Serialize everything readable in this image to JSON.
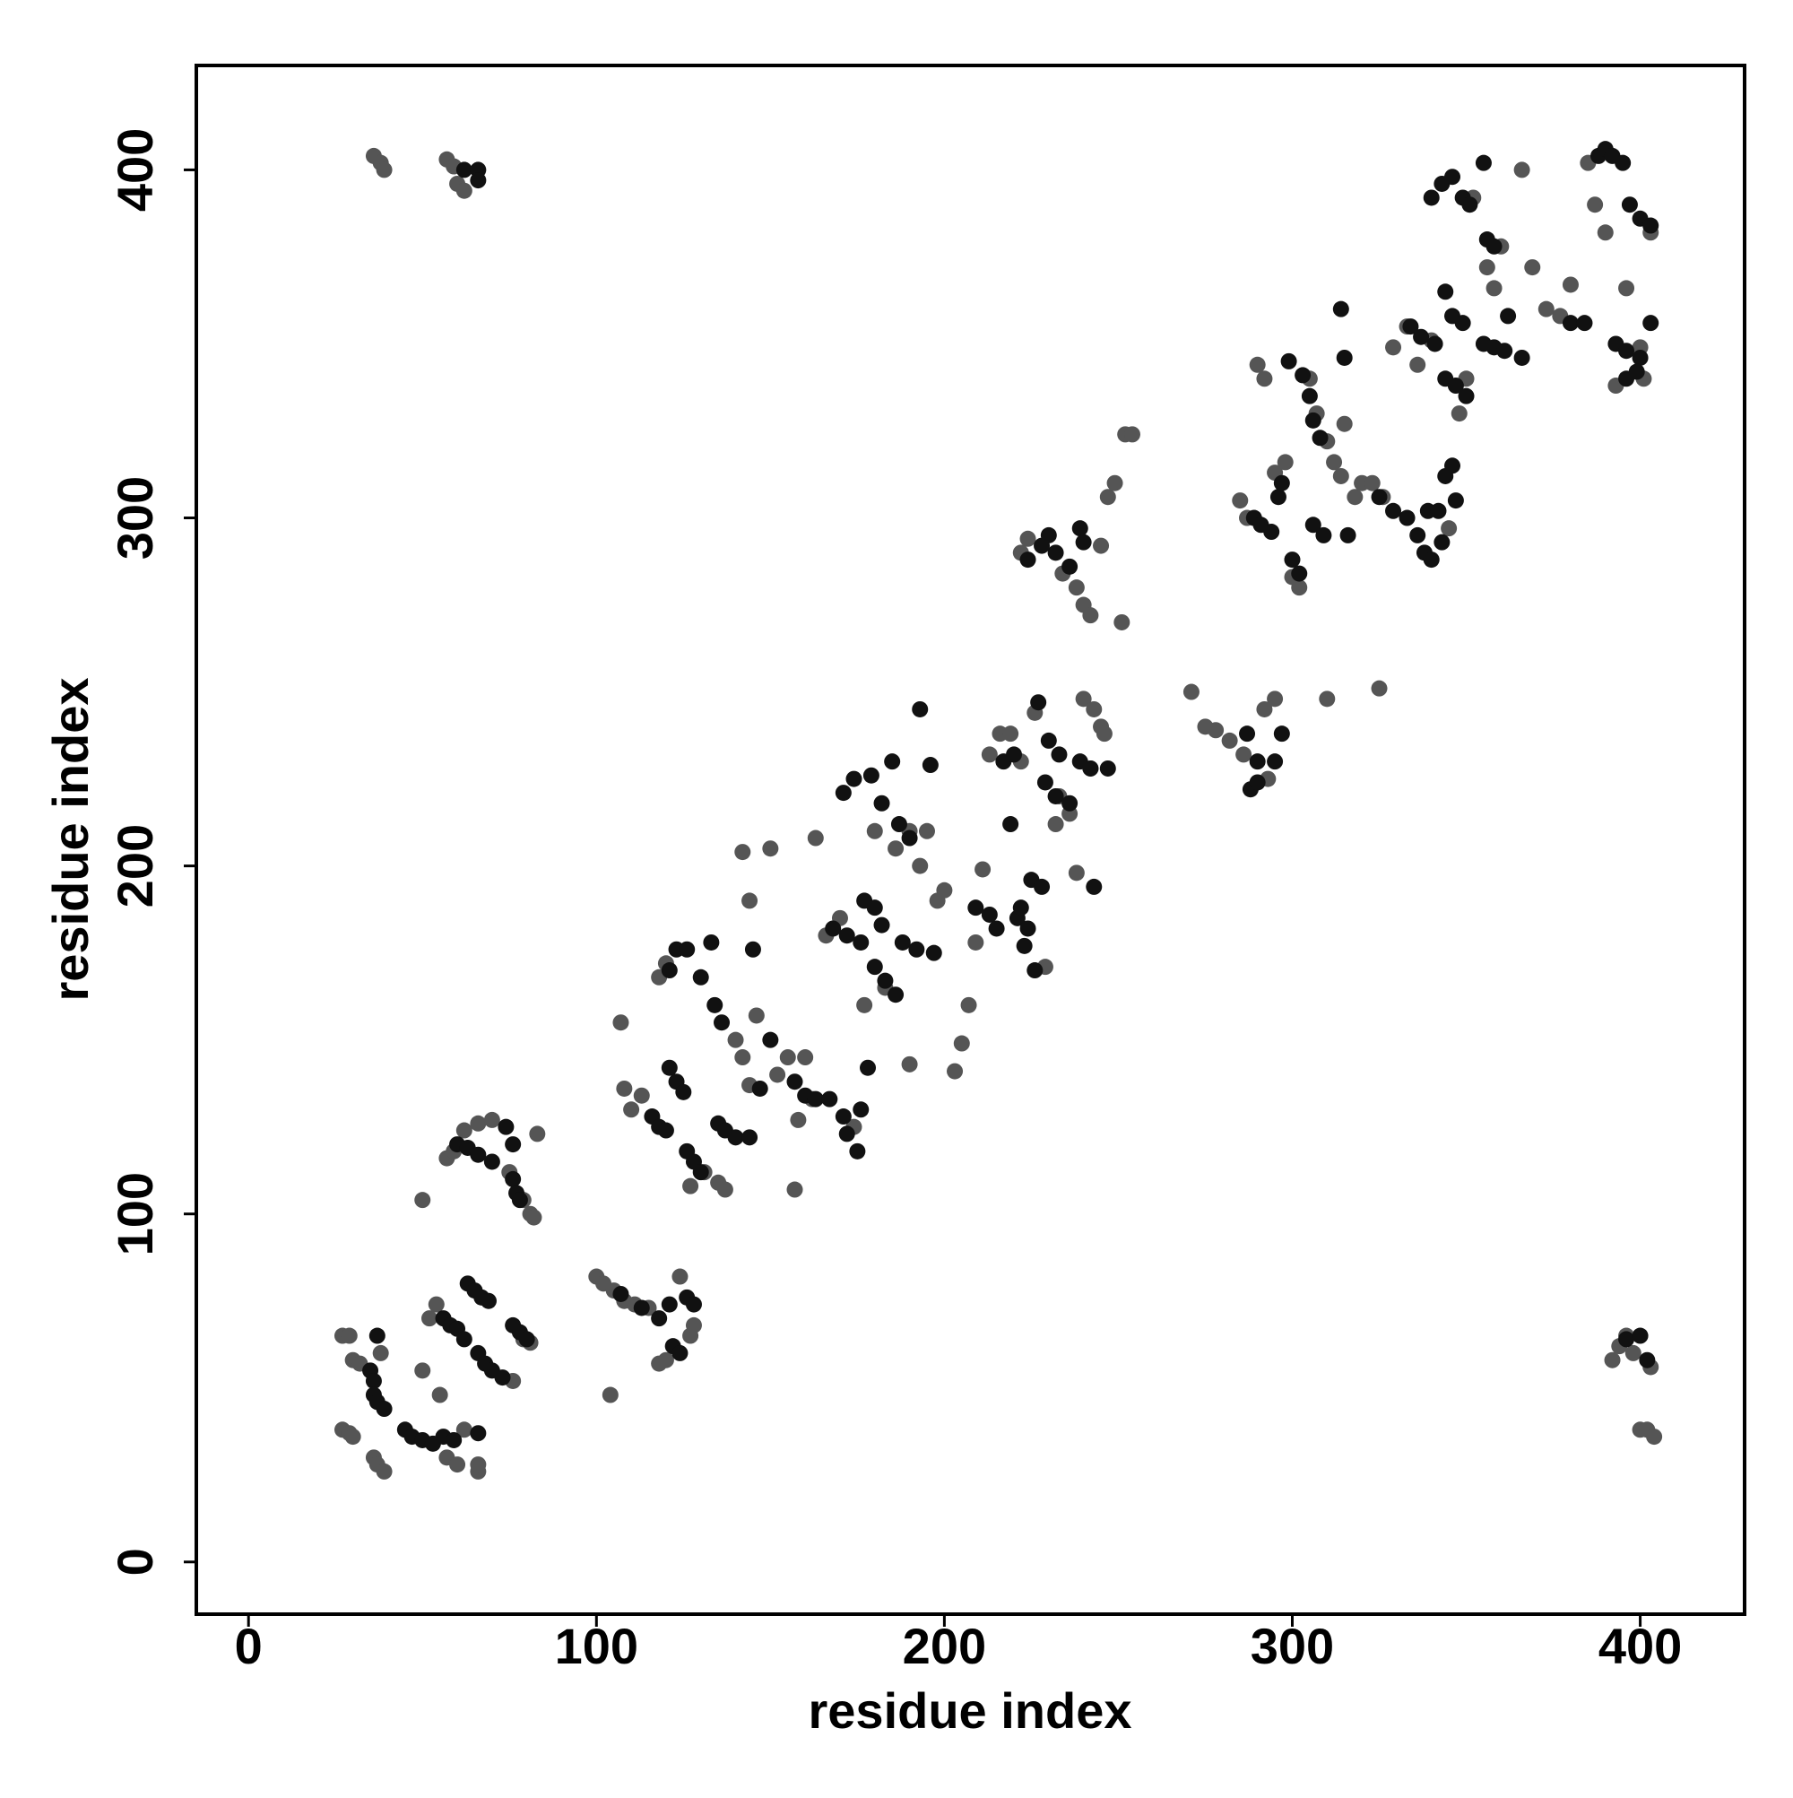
{
  "chart_data": {
    "type": "scatter",
    "xlabel": "residue index",
    "ylabel": "residue index",
    "xlim": [
      -15,
      430
    ],
    "ylim": [
      -15,
      430
    ],
    "xticks": [
      0,
      100,
      200,
      300,
      400
    ],
    "yticks": [
      0,
      100,
      200,
      300,
      400
    ],
    "series": [
      {
        "color": "#555555",
        "x": [
          36,
          38,
          39,
          57,
          59,
          60,
          62,
          27,
          29,
          30,
          32,
          27,
          29,
          30,
          36,
          37,
          39,
          38,
          54,
          55,
          57,
          60,
          66,
          66,
          50,
          52,
          62,
          76,
          79,
          81,
          100,
          102,
          105,
          108,
          111,
          115,
          118,
          120,
          124,
          127,
          128,
          104,
          50,
          57,
          59,
          62,
          66,
          70,
          75,
          79,
          81,
          82,
          83,
          107,
          108,
          110,
          113,
          118,
          120,
          127,
          131,
          135,
          137,
          140,
          142,
          144,
          146,
          142,
          144,
          150,
          152,
          155,
          157,
          158,
          160,
          162,
          163,
          166,
          170,
          174,
          177,
          180,
          183,
          186,
          190,
          193,
          195,
          198,
          200,
          203,
          205,
          207,
          209,
          211,
          213,
          216,
          219,
          222,
          229,
          232,
          236,
          238,
          240,
          243,
          245,
          246,
          242,
          226,
          233,
          190,
          222,
          224,
          234,
          238,
          240,
          242,
          245,
          247,
          249,
          251,
          252,
          254,
          271,
          275,
          278,
          282,
          286,
          292,
          295,
          293,
          310,
          325,
          285,
          287,
          290,
          292,
          295,
          298,
          300,
          302,
          305,
          307,
          310,
          312,
          314,
          315,
          318,
          320,
          323,
          326,
          329,
          333,
          336,
          340,
          345,
          348,
          350,
          352,
          356,
          358,
          360,
          366,
          369,
          373,
          377,
          380,
          385,
          387,
          390,
          393,
          396,
          400,
          401,
          403,
          392,
          394,
          396,
          398,
          400,
          402,
          404,
          403
        ],
        "values": [
          404,
          402,
          400,
          403,
          401,
          396,
          394,
          65,
          65,
          58,
          57,
          38,
          37,
          36,
          30,
          28,
          26,
          60,
          74,
          48,
          30,
          28,
          26,
          28,
          55,
          70,
          38,
          52,
          64,
          63,
          82,
          80,
          78,
          75,
          74,
          73,
          57,
          58,
          82,
          65,
          68,
          48,
          104,
          116,
          118,
          124,
          126,
          127,
          112,
          104,
          100,
          99,
          123,
          155,
          136,
          130,
          134,
          168,
          172,
          108,
          112,
          109,
          107,
          150,
          145,
          137,
          157,
          204,
          190,
          205,
          140,
          145,
          107,
          127,
          145,
          133,
          208,
          180,
          185,
          125,
          160,
          210,
          165,
          205,
          143,
          200,
          210,
          190,
          193,
          141,
          149,
          160,
          178,
          199,
          232,
          238,
          238,
          230,
          171,
          212,
          215,
          198,
          248,
          245,
          240,
          238,
          228,
          244,
          220,
          210,
          290,
          294,
          284,
          280,
          275,
          272,
          292,
          306,
          310,
          270,
          324,
          324,
          250,
          240,
          239,
          236,
          232,
          245,
          248,
          225,
          248,
          251,
          305,
          300,
          344,
          340,
          313,
          316,
          283,
          280,
          340,
          330,
          322,
          316,
          312,
          327,
          306,
          310,
          310,
          306,
          349,
          355,
          344,
          351,
          297,
          330,
          340,
          392,
          372,
          366,
          378,
          400,
          372,
          360,
          358,
          367,
          402,
          390,
          382,
          338,
          366,
          349,
          340,
          382,
          58,
          62,
          65,
          60,
          38,
          38,
          36,
          56
        ]
      },
      {
        "color": "#111111",
        "x": [
          62,
          66,
          66,
          37,
          35,
          36,
          36,
          37,
          39,
          45,
          47,
          50,
          53,
          56,
          59,
          66,
          56,
          58,
          60,
          63,
          65,
          67,
          69,
          66,
          68,
          70,
          73,
          76,
          78,
          80,
          62,
          107,
          113,
          118,
          121,
          122,
          124,
          126,
          128,
          60,
          63,
          66,
          70,
          74,
          76,
          76,
          77,
          78,
          116,
          118,
          120,
          121,
          123,
          125,
          126,
          128,
          130,
          121,
          123,
          126,
          130,
          133,
          134,
          136,
          135,
          137,
          140,
          144,
          145,
          147,
          150,
          157,
          160,
          163,
          167,
          171,
          172,
          175,
          176,
          178,
          177,
          180,
          182,
          180,
          183,
          186,
          168,
          172,
          176,
          171,
          174,
          179,
          182,
          185,
          187,
          190,
          188,
          192,
          197,
          196,
          193,
          209,
          213,
          215,
          219,
          221,
          224,
          223,
          226,
          225,
          228,
          230,
          233,
          227,
          229,
          232,
          236,
          239,
          242,
          247,
          243,
          217,
          220,
          222,
          224,
          228,
          230,
          232,
          236,
          239,
          240,
          287,
          290,
          288,
          290,
          295,
          297,
          289,
          291,
          294,
          296,
          297,
          300,
          302,
          299,
          303,
          305,
          306,
          308,
          306,
          309,
          314,
          315,
          316,
          325,
          329,
          333,
          336,
          338,
          340,
          343,
          344,
          346,
          347,
          339,
          342,
          334,
          337,
          341,
          344,
          346,
          349,
          344,
          347,
          350,
          340,
          343,
          346,
          349,
          351,
          355,
          356,
          358,
          355,
          358,
          361,
          366,
          362,
          380,
          384,
          388,
          390,
          392,
          395,
          397,
          400,
          403,
          393,
          396,
          400,
          403,
          396,
          399,
          396,
          400,
          402
        ],
        "values": [
          400,
          400,
          397,
          65,
          55,
          52,
          48,
          46,
          44,
          38,
          36,
          35,
          34,
          36,
          35,
          37,
          70,
          68,
          67,
          80,
          78,
          76,
          75,
          60,
          57,
          55,
          53,
          68,
          66,
          64,
          64,
          77,
          73,
          70,
          74,
          62,
          60,
          76,
          74,
          120,
          119,
          117,
          115,
          125,
          120,
          110,
          106,
          104,
          128,
          125,
          124,
          142,
          138,
          135,
          118,
          115,
          112,
          170,
          176,
          176,
          168,
          178,
          160,
          155,
          126,
          124,
          122,
          122,
          176,
          136,
          150,
          138,
          134,
          133,
          133,
          128,
          123,
          118,
          130,
          142,
          190,
          188,
          183,
          171,
          167,
          163,
          182,
          180,
          178,
          221,
          225,
          226,
          218,
          230,
          212,
          208,
          178,
          176,
          175,
          229,
          245,
          188,
          186,
          182,
          212,
          185,
          182,
          177,
          170,
          196,
          194,
          236,
          232,
          247,
          224,
          220,
          218,
          230,
          228,
          228,
          194,
          230,
          232,
          188,
          288,
          292,
          295,
          290,
          286,
          297,
          293,
          238,
          230,
          222,
          224,
          230,
          238,
          300,
          298,
          296,
          306,
          310,
          288,
          284,
          345,
          341,
          335,
          328,
          323,
          298,
          295,
          360,
          346,
          295,
          306,
          302,
          300,
          295,
          290,
          288,
          293,
          312,
          315,
          305,
          302,
          302,
          355,
          352,
          350,
          365,
          358,
          356,
          340,
          338,
          335,
          392,
          396,
          398,
          392,
          390,
          402,
          380,
          378,
          350,
          349,
          348,
          346,
          358,
          356,
          356,
          404,
          406,
          404,
          402,
          390,
          386,
          384,
          350,
          348,
          346,
          356,
          340,
          342,
          64,
          65,
          58
        ]
      }
    ]
  }
}
